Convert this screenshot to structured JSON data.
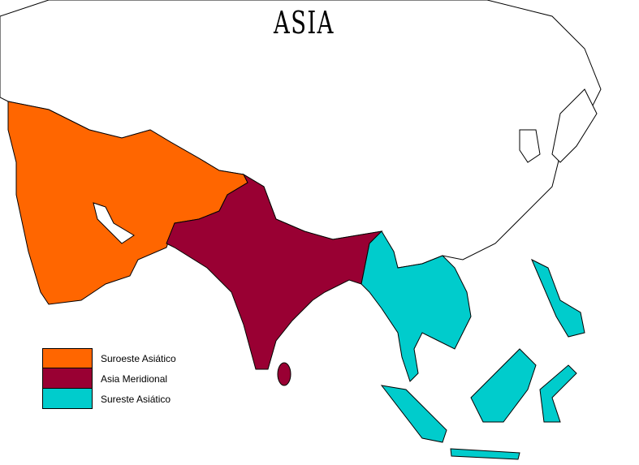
{
  "title": "ASIA",
  "legend": [
    {
      "label": "Suroeste Asiático",
      "color": "#ff6600"
    },
    {
      "label": "Asia Meridional",
      "color": "#990033"
    },
    {
      "label": "Sureste Asiático",
      "color": "#00cccc"
    }
  ]
}
